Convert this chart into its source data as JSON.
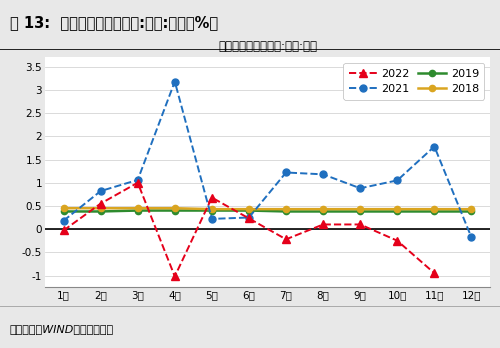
{
  "title_outer": "图 13:  固定资产投资完成额:环比:季调（%）",
  "title_inner": "固定资产投资完成额:环比:季调",
  "source_text": "资料来源：WIND，财信研究院",
  "months": [
    1,
    2,
    3,
    4,
    5,
    6,
    7,
    8,
    9,
    10,
    11,
    12
  ],
  "month_labels": [
    "1月",
    "2月",
    "3月",
    "4月",
    "5月",
    "6月",
    "7月",
    "8月",
    "9月",
    "10月",
    "11月",
    "12月"
  ],
  "series_2022": [
    -0.03,
    0.55,
    1.0,
    -1.02,
    0.68,
    0.23,
    -0.22,
    0.1,
    0.1,
    -0.25,
    -0.95,
    null
  ],
  "series_2021": [
    0.18,
    0.82,
    1.06,
    3.18,
    0.22,
    0.25,
    1.22,
    1.18,
    0.88,
    1.05,
    1.78,
    -0.18
  ],
  "series_2019": [
    0.38,
    0.38,
    0.4,
    0.4,
    0.4,
    0.4,
    0.38,
    0.38,
    0.38,
    0.38,
    0.38,
    0.38
  ],
  "series_2018": [
    0.45,
    0.45,
    0.45,
    0.45,
    0.43,
    0.43,
    0.43,
    0.43,
    0.43,
    0.43,
    0.43,
    0.43
  ],
  "color_2022": "#E5001A",
  "color_2021": "#1F6FBF",
  "color_2019": "#2E8B2E",
  "color_2018": "#DAA520",
  "ylim": [
    -1.25,
    3.7
  ],
  "yticks": [
    -1.0,
    -0.5,
    0.0,
    0.5,
    1.0,
    1.5,
    2.0,
    2.5,
    3.0,
    3.5
  ],
  "background_color": "#FFFFFF",
  "outer_bg": "#E8E8E8"
}
